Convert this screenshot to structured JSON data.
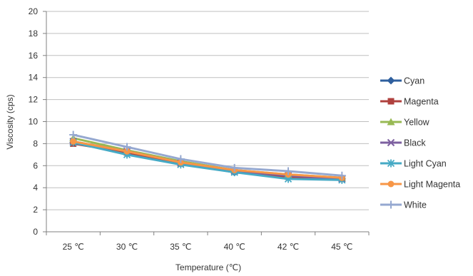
{
  "colors": {
    "grid": "#BFBFBF",
    "axis": "#808080",
    "text": "#333333"
  },
  "chart_data": {
    "type": "line",
    "title": "",
    "xlabel": "Temperature (℃)",
    "ylabel": "Viscosity (cps)",
    "categories": [
      "25 ℃",
      "30 ℃",
      "35 ℃",
      "40 ℃",
      "42 ℃",
      "45 ℃"
    ],
    "ylim": [
      0,
      20
    ],
    "yticks": [
      0,
      2,
      4,
      6,
      8,
      10,
      12,
      14,
      16,
      18,
      20
    ],
    "grid": true,
    "legend": "right",
    "series": [
      {
        "name": "Cyan",
        "color": "#2E5F9E",
        "marker": "diamond",
        "values": [
          8.1,
          7.1,
          6.2,
          5.4,
          5.0,
          4.8
        ]
      },
      {
        "name": "Magenta",
        "color": "#B0413E",
        "marker": "square",
        "values": [
          8.0,
          7.2,
          6.2,
          5.5,
          5.0,
          4.8
        ]
      },
      {
        "name": "Yellow",
        "color": "#98B954",
        "marker": "triangle",
        "values": [
          8.5,
          7.4,
          6.4,
          5.6,
          5.2,
          4.9
        ]
      },
      {
        "name": "Black",
        "color": "#7D60A0",
        "marker": "x",
        "values": [
          8.2,
          7.3,
          6.3,
          5.5,
          5.1,
          4.8
        ]
      },
      {
        "name": "Light Cyan",
        "color": "#46AAC5",
        "marker": "star",
        "values": [
          8.1,
          7.0,
          6.1,
          5.4,
          4.8,
          4.7
        ]
      },
      {
        "name": "Light Magenta",
        "color": "#F79646",
        "marker": "circle",
        "values": [
          8.2,
          7.3,
          6.3,
          5.6,
          5.2,
          4.9
        ]
      },
      {
        "name": "White",
        "color": "#95A8D0",
        "marker": "plus",
        "values": [
          8.8,
          7.7,
          6.6,
          5.8,
          5.5,
          5.1
        ]
      }
    ]
  }
}
